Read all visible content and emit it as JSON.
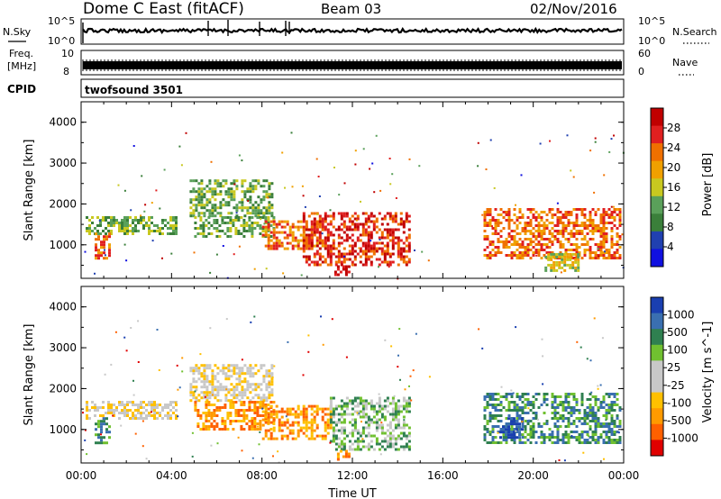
{
  "header": {
    "title": "Dome C East (fitACF)",
    "beam": "Beam 03",
    "date": "02/Nov/2016"
  },
  "top_panels": {
    "nsky_label": "N.Sky",
    "nsky_ticks": [
      "10^5",
      "10^0"
    ],
    "nsearch_label": "N.Search",
    "nsearch_ticks": [
      "10^5",
      "10^0"
    ],
    "freq_label_1": "Freq.",
    "freq_label_2": "[MHz]",
    "freq_ticks": [
      "10",
      "8"
    ],
    "nave_label": "Nave",
    "nave_ticks": [
      "60",
      "0"
    ],
    "cpid_label": "CPID",
    "cpid_value": "twofsound 3501"
  },
  "colors": {
    "power": [
      "#1010e0",
      "#2040b0",
      "#3a7f3a",
      "#5aa05a",
      "#c8c820",
      "#f0a000",
      "#f07000",
      "#e02020",
      "#c00000"
    ],
    "velocity": [
      "#e00000",
      "#ff6000",
      "#ff9a00",
      "#ffc000",
      "#c8c8c8",
      "#c8c8c8",
      "#70c030",
      "#2f8050",
      "#3a6fb0",
      "#1a3fb0"
    ]
  },
  "chart_data": [
    {
      "type": "heatmap",
      "name": "power",
      "xlabel": "",
      "ylabel": "Slant Range [km]",
      "xlim": [
        "00:00",
        "24:00"
      ],
      "ylim": [
        180,
        4500
      ],
      "yticks": [
        "1000",
        "2000",
        "3000",
        "4000"
      ],
      "colorbar": {
        "label": "Power [dB]",
        "ticks": [
          "4",
          "8",
          "12",
          "16",
          "20",
          "24",
          "28"
        ],
        "range": [
          0,
          30
        ]
      },
      "echo_regions": [
        {
          "t0": 0.2,
          "t1": 4.2,
          "r0": 1300,
          "r1": 1700,
          "level": 3
        },
        {
          "t0": 0.6,
          "t1": 1.2,
          "r0": 700,
          "r1": 1300,
          "level": 6
        },
        {
          "t0": 4.8,
          "t1": 8.5,
          "r0": 1700,
          "r1": 2600,
          "level": 3
        },
        {
          "t0": 5.0,
          "t1": 8.5,
          "r0": 1200,
          "r1": 1700,
          "level": 3
        },
        {
          "t0": 8.0,
          "t1": 10.8,
          "r0": 900,
          "r1": 1600,
          "level": 6
        },
        {
          "t0": 9.8,
          "t1": 14.5,
          "r0": 500,
          "r1": 1800,
          "level": 7
        },
        {
          "t0": 11.2,
          "t1": 11.8,
          "r0": 300,
          "r1": 500,
          "level": 8
        },
        {
          "t0": 17.8,
          "t1": 23.8,
          "r0": 700,
          "r1": 1900,
          "level": 6
        },
        {
          "t0": 20.5,
          "t1": 22.0,
          "r0": 400,
          "r1": 800,
          "level": 4
        }
      ]
    },
    {
      "type": "heatmap",
      "name": "velocity",
      "xlabel": "Time UT",
      "ylabel": "Slant Range [km]",
      "xlim": [
        "00:00",
        "24:00"
      ],
      "ylim": [
        180,
        4500
      ],
      "xticks": [
        "00:00",
        "04:00",
        "08:00",
        "12:00",
        "16:00",
        "20:00",
        "00:00"
      ],
      "yticks": [
        "1000",
        "2000",
        "3000",
        "4000"
      ],
      "colorbar": {
        "label": "Velocity [m s^-1]",
        "ticks": [
          "1000",
          "500",
          "100",
          "25",
          "-25",
          "-100",
          "-500",
          "-1000"
        ],
        "range": [
          -1000,
          1000
        ]
      },
      "echo_regions": [
        {
          "t0": 0.2,
          "t1": 4.2,
          "r0": 1300,
          "r1": 1700,
          "level": 4
        },
        {
          "t0": 0.6,
          "t1": 1.2,
          "r0": 700,
          "r1": 1300,
          "level": 7
        },
        {
          "t0": 4.8,
          "t1": 8.5,
          "r0": 1700,
          "r1": 2600,
          "level": 4
        },
        {
          "t0": 5.0,
          "t1": 8.5,
          "r0": 1000,
          "r1": 1700,
          "level": 2
        },
        {
          "t0": 8.0,
          "t1": 11.0,
          "r0": 800,
          "r1": 1600,
          "level": 2
        },
        {
          "t0": 11.0,
          "t1": 14.5,
          "r0": 500,
          "r1": 1800,
          "level": 6
        },
        {
          "t0": 11.2,
          "t1": 11.8,
          "r0": 300,
          "r1": 500,
          "level": 2
        },
        {
          "t0": 17.8,
          "t1": 23.8,
          "r0": 700,
          "r1": 1900,
          "level": 7
        },
        {
          "t0": 18.5,
          "t1": 19.5,
          "r0": 800,
          "r1": 1300,
          "level": 9
        }
      ]
    }
  ]
}
